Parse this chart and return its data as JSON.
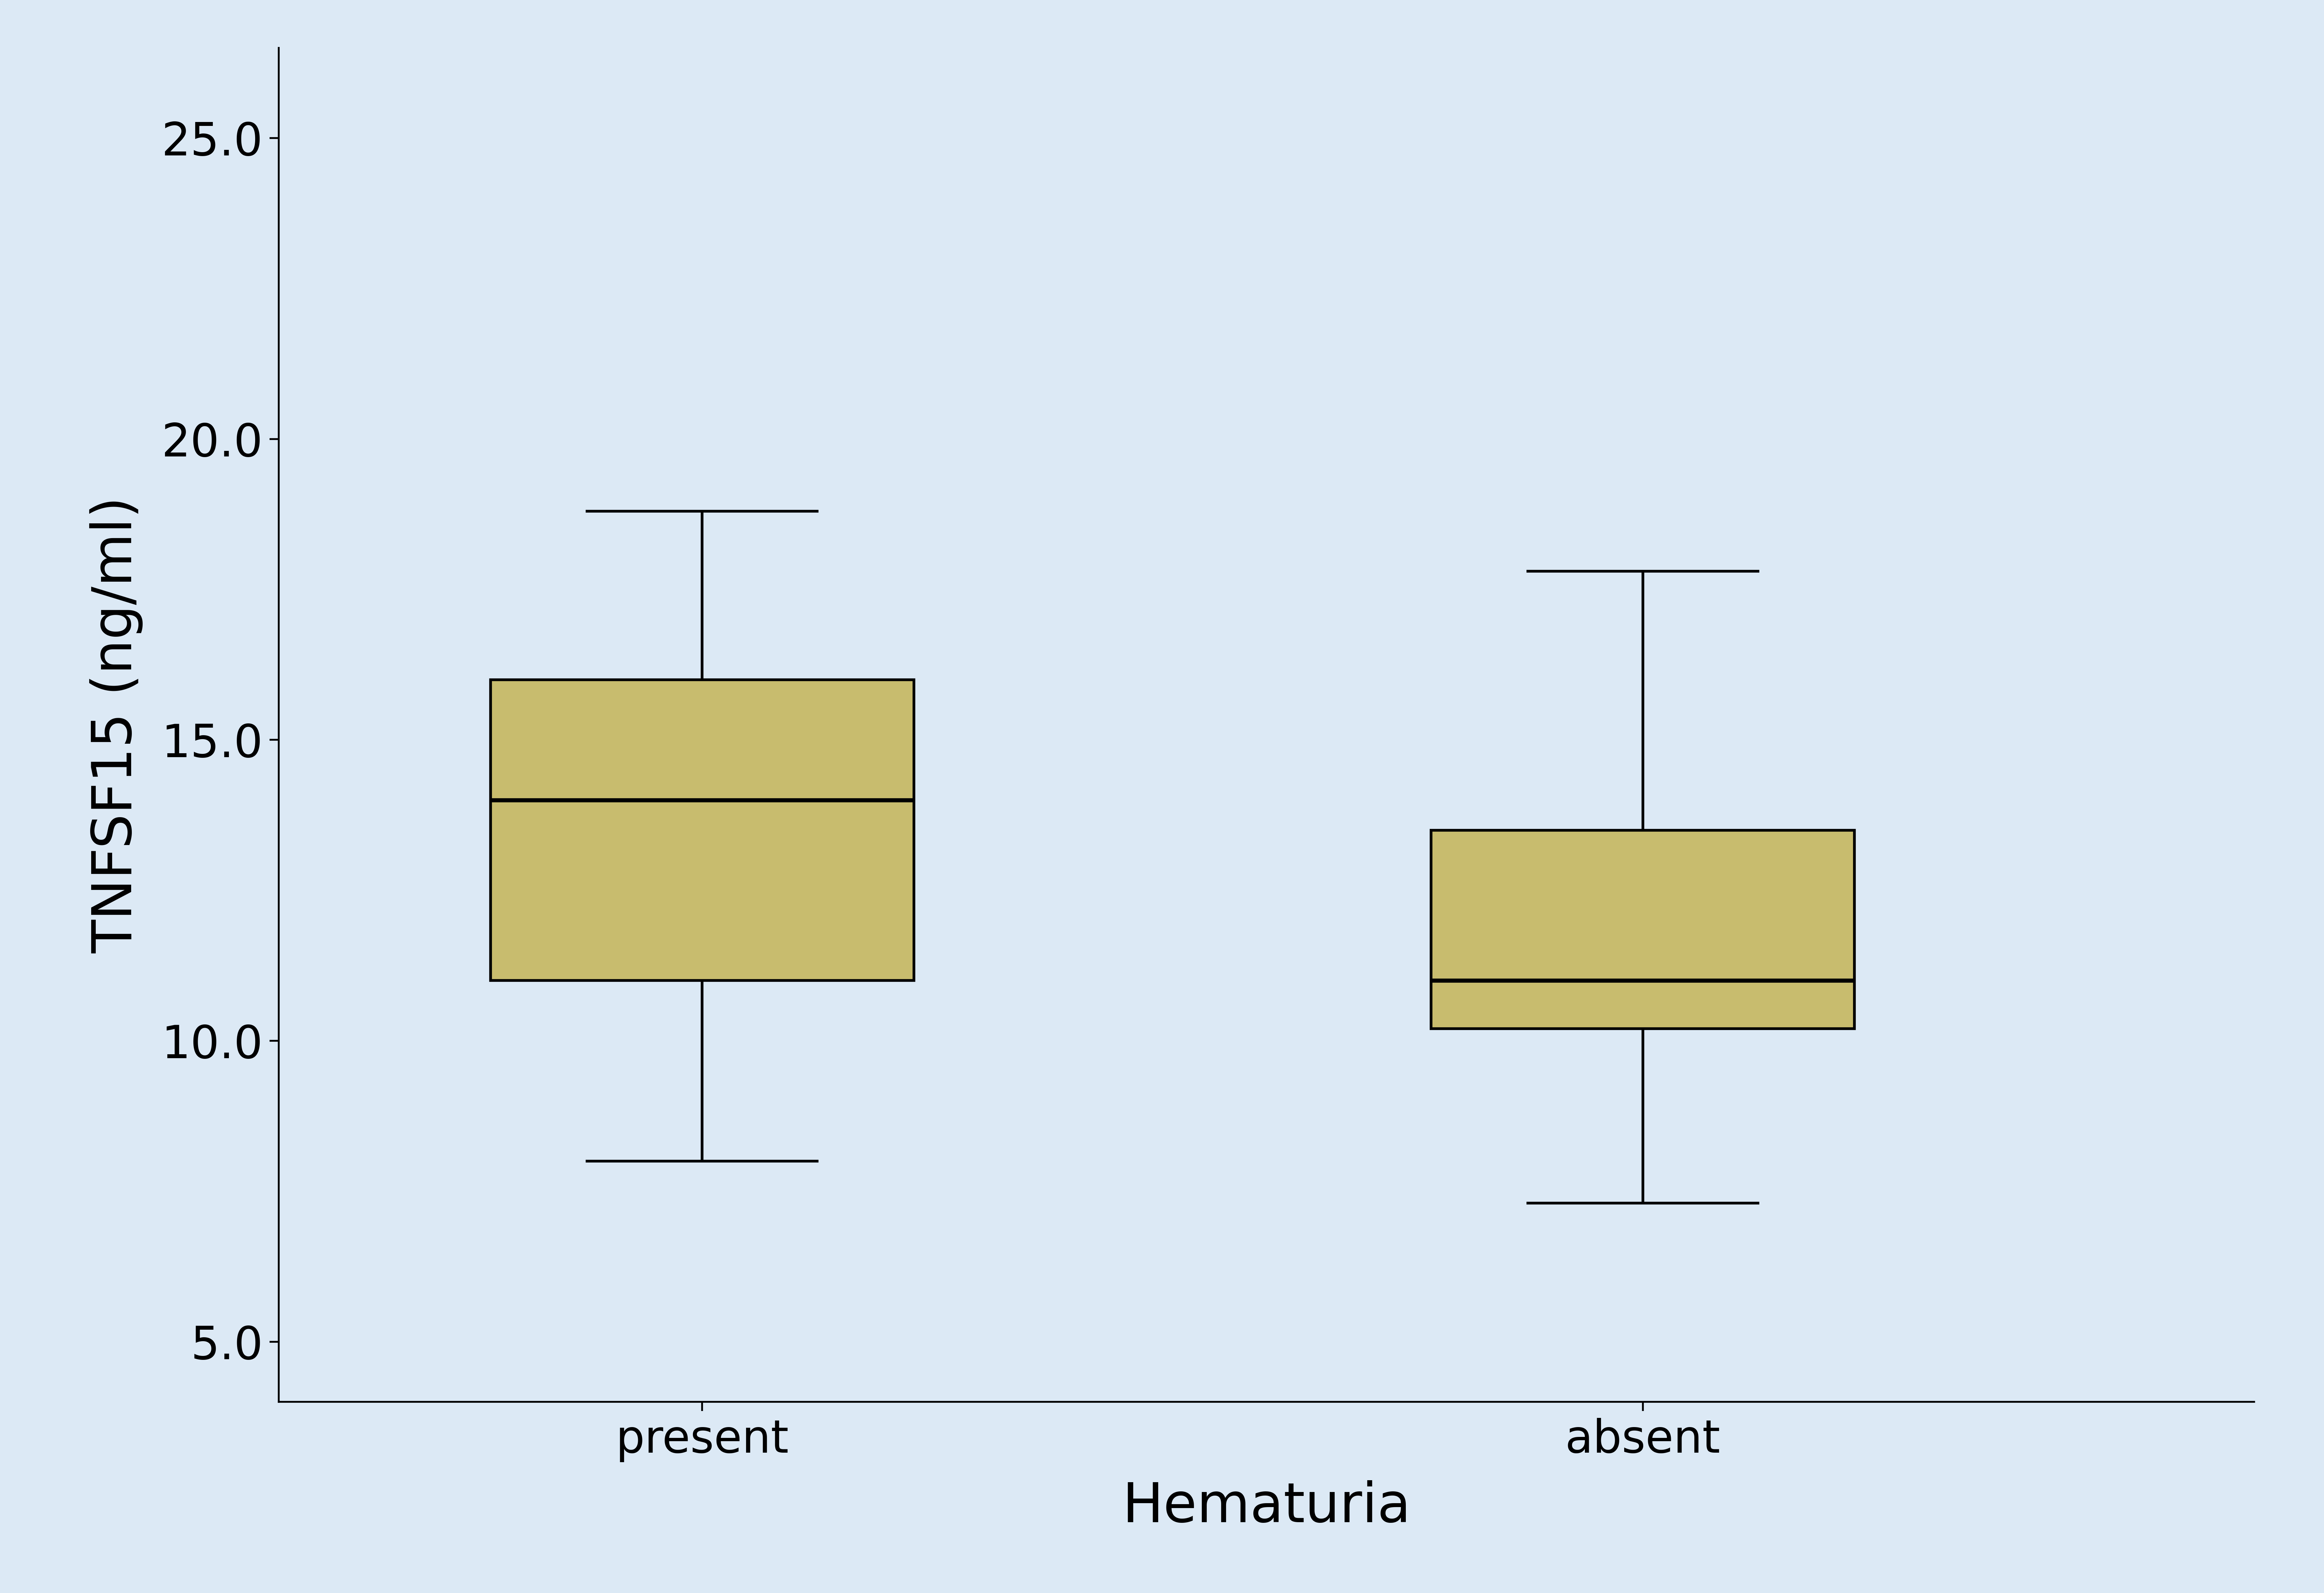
{
  "background_color": "#dce9f5",
  "plot_bg_color": "#dce9f5",
  "categories": [
    "present",
    "absent"
  ],
  "box_data": {
    "present": {
      "whisker_low": 8.0,
      "q1": 11.0,
      "median": 14.0,
      "q3": 16.0,
      "whisker_high": 18.8
    },
    "absent": {
      "whisker_low": 7.3,
      "q1": 10.2,
      "median": 11.0,
      "q3": 13.5,
      "whisker_high": 17.8
    }
  },
  "box_color": "#c8bc6e",
  "box_edge_color": "#000000",
  "median_color": "#000000",
  "whisker_color": "#000000",
  "cap_color": "#000000",
  "ylabel": "TNFSF15 (ng/ml)",
  "xlabel": "Hematuria",
  "ylim": [
    4.0,
    26.5
  ],
  "yticks": [
    5.0,
    10.0,
    15.0,
    20.0,
    25.0
  ],
  "ytick_labels": [
    "5.0",
    "10.0",
    "15.0",
    "20.0",
    "25.0"
  ],
  "box_width": 0.45,
  "linewidth": 6,
  "median_linewidth": 9,
  "axis_label_fontsize": 120,
  "tick_fontsize": 100,
  "spine_linewidth": 4
}
